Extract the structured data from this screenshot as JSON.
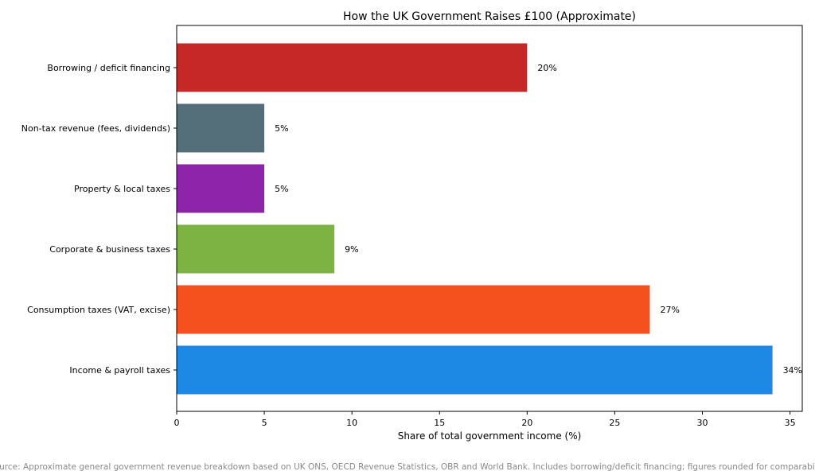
{
  "chart_data": {
    "type": "bar",
    "orientation": "horizontal",
    "title": "How the UK Government Raises £100 (Approximate)",
    "xlabel": "Share of total government income (%)",
    "ylabel": "",
    "xlim": [
      0,
      35.7
    ],
    "xticks": [
      0,
      5,
      10,
      15,
      20,
      25,
      30,
      35
    ],
    "grid": false,
    "categories": [
      "Income & payroll taxes",
      "Consumption taxes (VAT, excise)",
      "Corporate & business taxes",
      "Property & local taxes",
      "Non-tax revenue (fees, dividends)",
      "Borrowing / deficit financing"
    ],
    "values": [
      34,
      27,
      9,
      5,
      5,
      20
    ],
    "value_labels": [
      "34%",
      "27%",
      "9%",
      "5%",
      "5%",
      "20%"
    ],
    "colors": [
      "#1e88e5",
      "#f4511e",
      "#7cb342",
      "#8e24aa",
      "#546e7a",
      "#c62828"
    ]
  },
  "footnote": "Source: Approximate general government revenue breakdown based on UK ONS, OECD Revenue Statistics, OBR and World Bank. Includes borrowing/deficit financing; figures rounded for comparability."
}
